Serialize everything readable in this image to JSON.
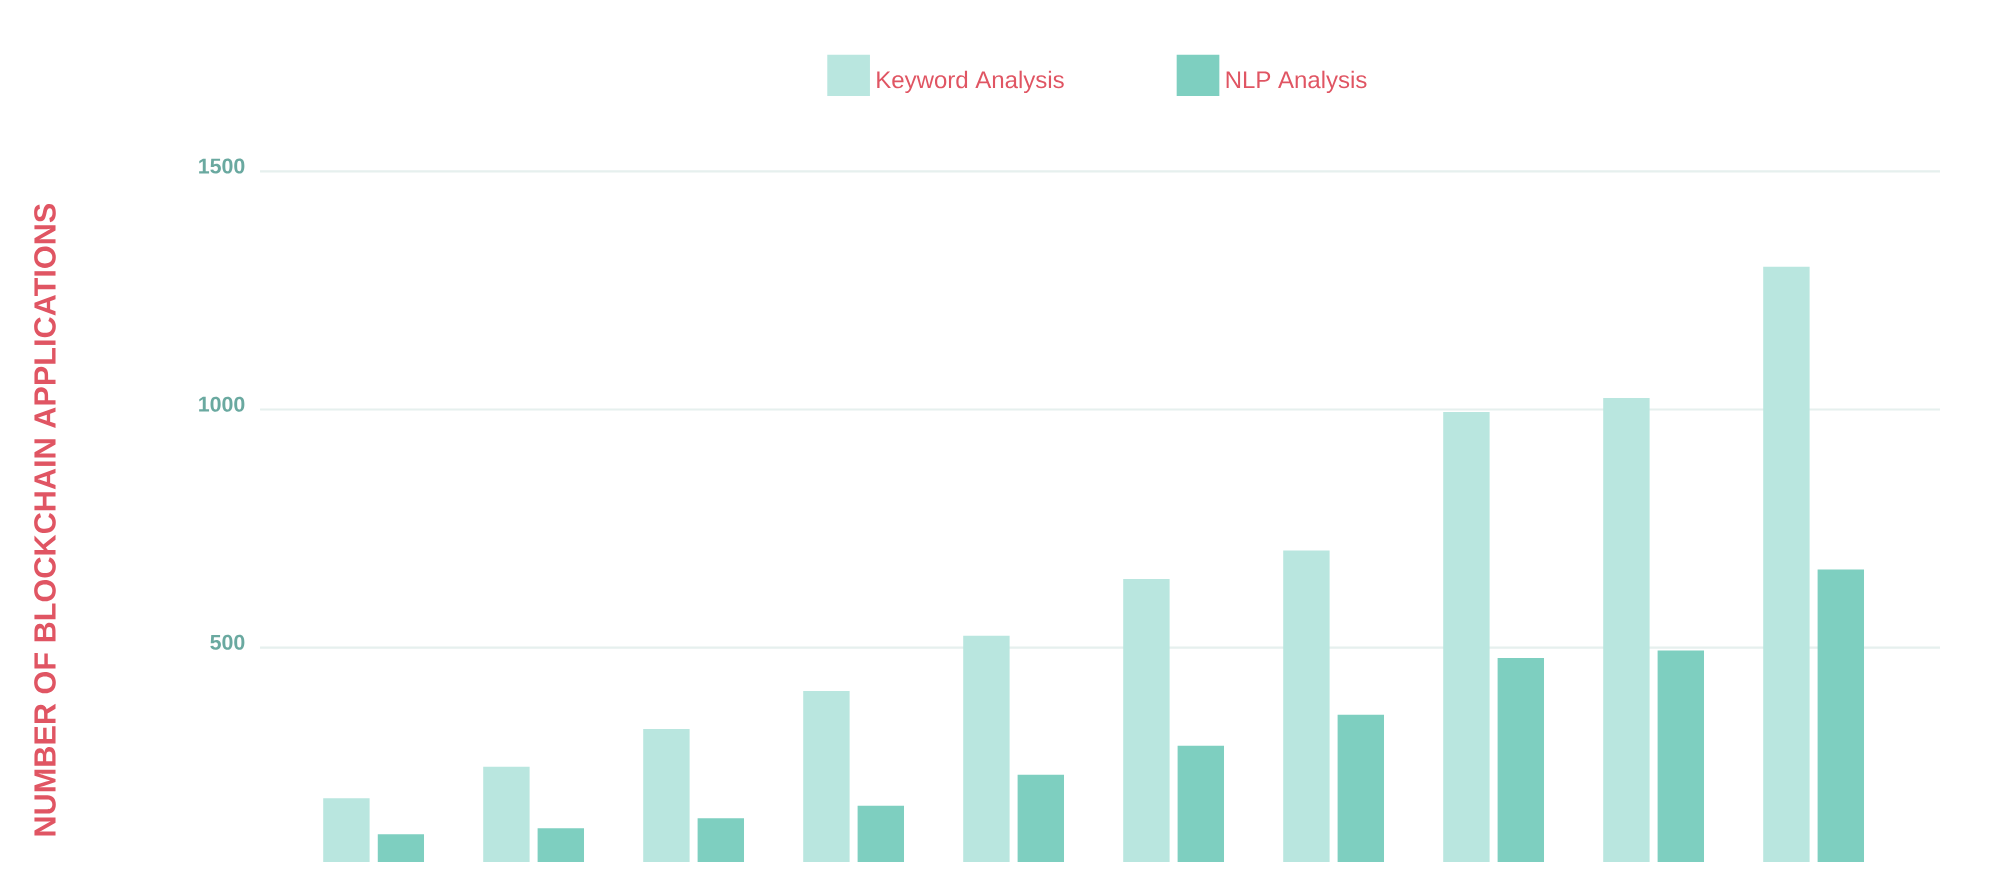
{
  "chart_data": {
    "type": "bar",
    "ylabel": "NUMBER OF BLOCKCHAIN APPLICATIONS",
    "categories": [
      null,
      null,
      null,
      null,
      null,
      null,
      null,
      null,
      null,
      null
    ],
    "series": [
      {
        "name": "Keyword Analysis",
        "color": "#b9e6df",
        "values": [
          184,
          250,
          329,
          409,
          525,
          644,
          704,
          995,
          1024,
          1300
        ]
      },
      {
        "name": "NLP Analysis",
        "color": "#7ecfc0",
        "values": [
          108,
          121,
          142,
          168,
          233,
          294,
          359,
          478,
          494,
          664
        ]
      }
    ],
    "ylim": [
      50,
      1500
    ],
    "yticks": [
      500,
      1000,
      1500
    ],
    "grid": "y",
    "legend": "top",
    "tick_labels": "y"
  }
}
